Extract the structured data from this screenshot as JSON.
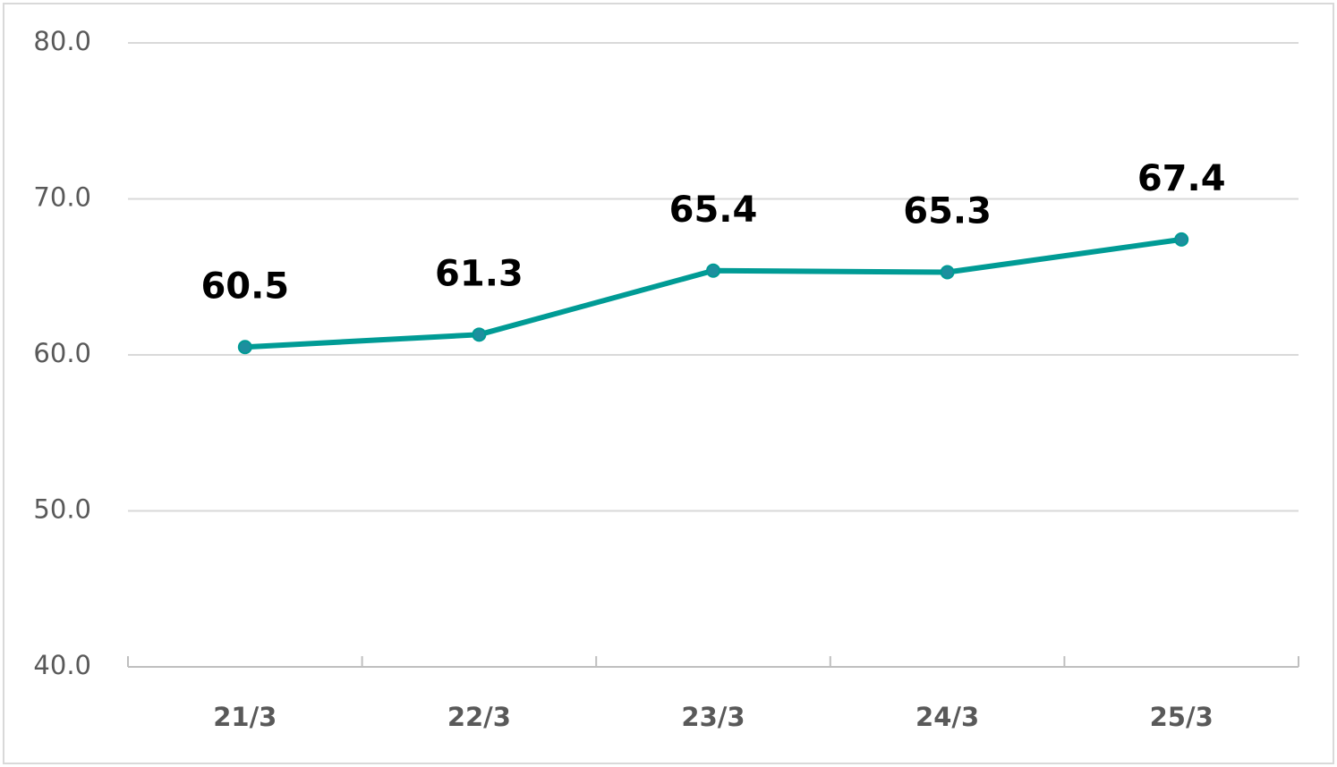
{
  "chart_data": {
    "type": "line",
    "categories": [
      "21/3",
      "22/3",
      "23/3",
      "24/3",
      "25/3"
    ],
    "values": [
      60.5,
      61.3,
      65.4,
      65.3,
      67.4
    ],
    "color": "#009b95",
    "ylim": [
      40,
      80
    ],
    "yticks": [
      {
        "value": 40,
        "label": "40.0"
      },
      {
        "value": 50,
        "label": "50.0"
      },
      {
        "value": 60,
        "label": "60.0"
      },
      {
        "value": 70,
        "label": "70.0"
      },
      {
        "value": 80,
        "label": "80.0"
      }
    ],
    "grid": true
  }
}
